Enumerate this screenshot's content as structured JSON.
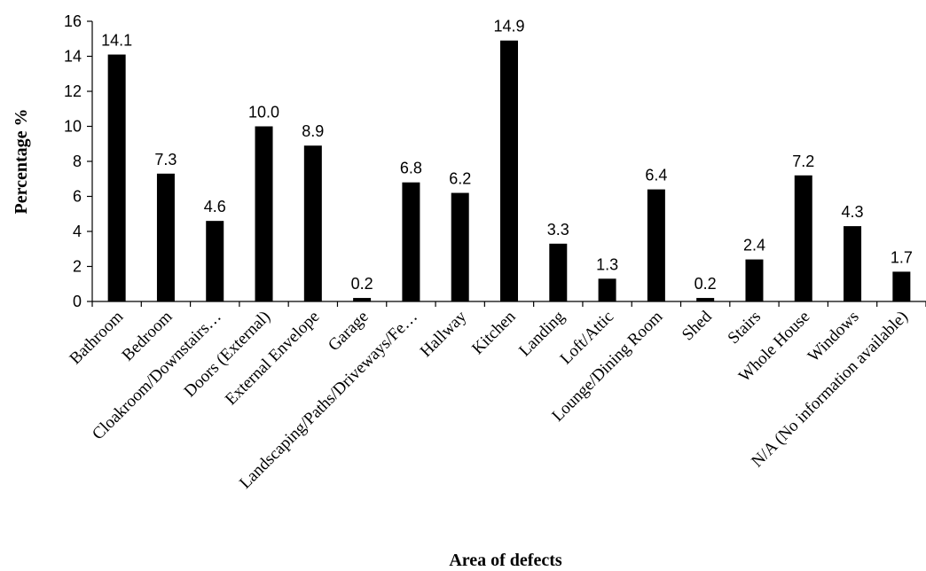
{
  "chart_data": {
    "type": "bar",
    "categories": [
      "Bathroom",
      "Bedroom",
      "Cloakroom/Downstairs…",
      "Doors (External)",
      "External Envelope",
      "Garage",
      "Landscaping/Paths/Driveways/Fe…",
      "Hallway",
      "Kitchen",
      "Landing",
      "Loft/Attic",
      "Lounge/Dining Room",
      "Shed",
      "Stairs",
      "Whole House",
      "Windows",
      "N/A (No information available)"
    ],
    "values": [
      14.1,
      7.3,
      4.6,
      10.0,
      8.9,
      0.2,
      6.8,
      6.2,
      14.9,
      3.3,
      1.3,
      6.4,
      0.2,
      2.4,
      7.2,
      4.3,
      1.7
    ],
    "data_labels": [
      "14.1",
      "7.3",
      "4.6",
      "10.0",
      "8.9",
      "0.2",
      "6.8",
      "6.2",
      "14.9",
      "3.3",
      "1.3",
      "6.4",
      "0.2",
      "2.4",
      "7.2",
      "4.3",
      "1.7"
    ],
    "xlabel": "Area of defects",
    "ylabel": "Percentage %",
    "ylim": [
      0,
      16
    ],
    "yticks": [
      "0",
      "2",
      "4",
      "6",
      "8",
      "10",
      "12",
      "14",
      "16"
    ],
    "grid": false,
    "bar_color": "#000000"
  }
}
